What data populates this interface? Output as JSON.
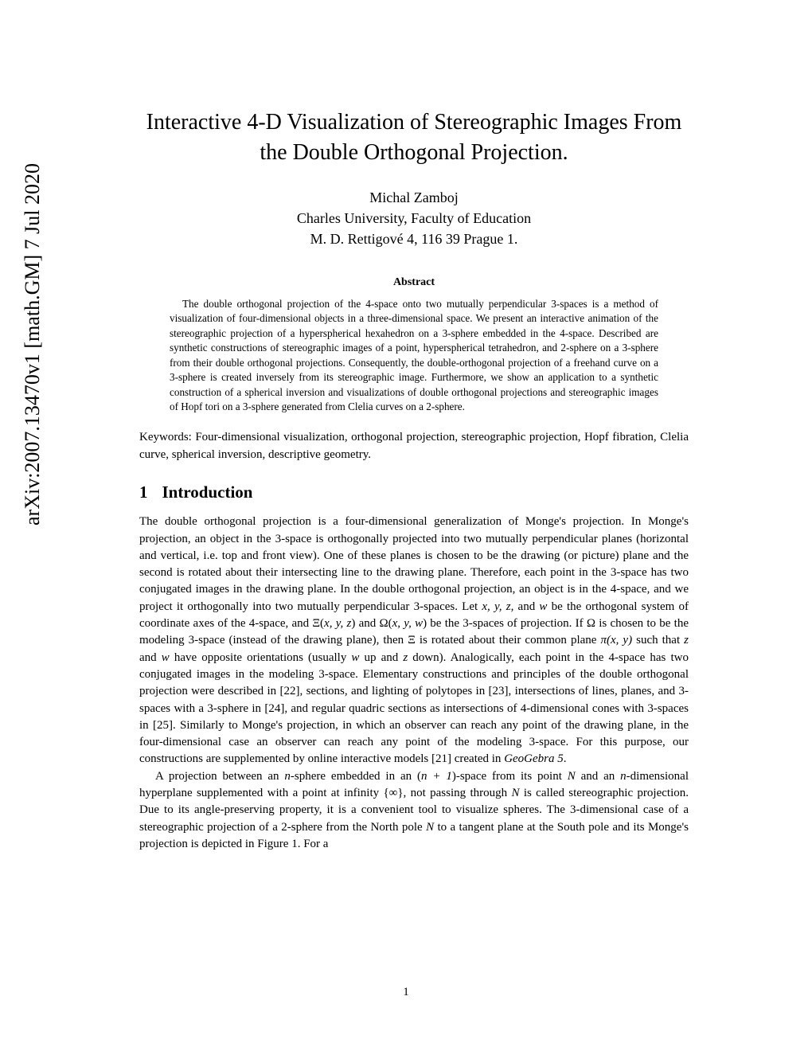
{
  "arxiv_stamp": "arXiv:2007.13470v1  [math.GM]  7 Jul 2020",
  "title_line1": "Interactive 4-D Visualization of Stereographic Images From",
  "title_line2": "the Double Orthogonal Projection.",
  "author_name": "Michal Zamboj",
  "author_affiliation": "Charles University, Faculty of Education",
  "author_address": "M. D. Rettigové 4, 116 39 Prague 1.",
  "abstract_heading": "Abstract",
  "abstract_text": "The double orthogonal projection of the 4-space onto two mutually perpendicular 3-spaces is a method of visualization of four-dimensional objects in a three-dimensional space. We present an interactive animation of the stereographic projection of a hyperspherical hexahedron on a 3-sphere embedded in the 4-space. Described are synthetic constructions of stereographic images of a point, hyperspherical tetrahedron, and 2-sphere on a 3-sphere from their double orthogonal projections. Consequently, the double-orthogonal projection of a freehand curve on a 3-sphere is created inversely from its stereographic image. Furthermore, we show an application to a synthetic construction of a spherical inversion and visualizations of double orthogonal projections and stereographic images of Hopf tori on a 3-sphere generated from Clelia curves on a 2-sphere.",
  "keywords_label": "Keywords: ",
  "keywords_text": "Four-dimensional visualization, orthogonal projection, stereographic projection, Hopf fibration, Clelia curve, spherical inversion, descriptive geometry.",
  "section_number": "1",
  "section_title": "Introduction",
  "para1_a": "The double orthogonal projection is a four-dimensional generalization of Monge's projection. In Monge's projection, an object in the 3-space is orthogonally projected into two mutually perpendicular planes (horizontal and vertical, i.e. top and front view). One of these planes is chosen to be the drawing (or picture) plane and the second is rotated about their intersecting line to the drawing plane. Therefore, each point in the 3-space has two conjugated images in the drawing plane. In the double orthogonal projection, an object is in the 4-space, and we project it orthogonally into two mutually perpendicular 3-spaces. Let ",
  "para1_b": " be the orthogonal system of coordinate axes of the 4-space, and Ξ(",
  "para1_c": ") and Ω(",
  "para1_d": ") be the 3-spaces of projection. If Ω is chosen to be the modeling 3-space (instead of the drawing plane), then Ξ is rotated about their common plane ",
  "para1_e": " such that ",
  "para1_f": " have opposite orientations (usually ",
  "para1_g": " up and ",
  "para1_h": " down). Analogically, each point in the 4-space has two conjugated images in the modeling 3-space. Elementary constructions and principles of the double orthogonal projection were described in [22], sections, and lighting of polytopes in [23], intersections of lines, planes, and 3-spaces with a 3-sphere in [24], and regular quadric sections as intersections of 4-dimensional cones with 3-spaces in [25]. Similarly to Monge's projection, in which an observer can reach any point of the drawing plane, in the four-dimensional case an observer can reach any point of the modeling 3-space. For this purpose, our constructions are supplemented by online interactive models [21] created in ",
  "geogebra": "GeoGebra 5",
  "para2_a": "A projection between an ",
  "para2_b": "-sphere embedded in an (",
  "para2_c": ")-space from its point ",
  "para2_d": " and an ",
  "para2_e": "-dimensional hyperplane supplemented with a point at infinity {∞}, not passing through ",
  "para2_f": " is called stereographic projection. Due to its angle-preserving property, it is a convenient tool to visualize spheres. The 3-dimensional case of a stereographic projection of a 2-sphere from the North pole ",
  "para2_g": " to a tangent plane at the South pole and its Monge's projection is depicted in Figure 1. For a",
  "vars": {
    "xyzw": "x, y, z,",
    "w": "w",
    "xyz": "x, y, z",
    "xyw": "x, y, w",
    "pixy": "π(x, y)",
    "z": "z",
    "n": "n",
    "nplus1": "n + 1",
    "N": "N",
    "and": " and "
  },
  "page_number": "1"
}
